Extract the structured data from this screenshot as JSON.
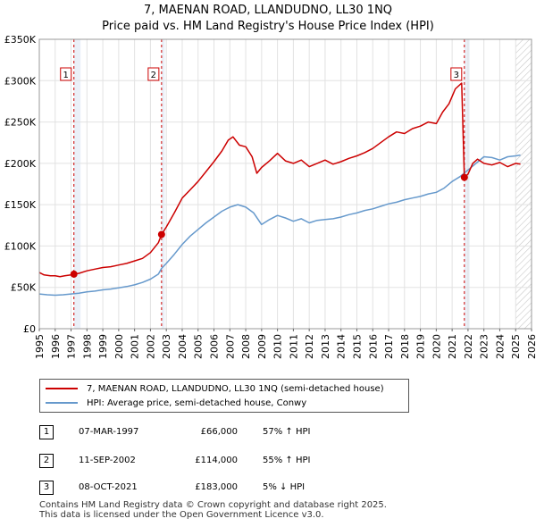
{
  "chart_data": {
    "type": "line",
    "title": "7, MAENAN ROAD, LLANDUDNO, LL30 1NQ",
    "subtitle": "Price paid vs. HM Land Registry's House Price Index (HPI)",
    "xlim": [
      1995,
      2026
    ],
    "ylim": [
      0,
      350000
    ],
    "x_ticks": [
      1995,
      1996,
      1997,
      1998,
      1999,
      2000,
      2001,
      2002,
      2003,
      2004,
      2005,
      2006,
      2007,
      2008,
      2009,
      2010,
      2011,
      2012,
      2013,
      2014,
      2015,
      2016,
      2017,
      2018,
      2019,
      2020,
      2021,
      2022,
      2023,
      2024,
      2025,
      2026
    ],
    "y_ticks": [
      {
        "value": 0,
        "label": "£0"
      },
      {
        "value": 50000,
        "label": "£50K"
      },
      {
        "value": 100000,
        "label": "£100K"
      },
      {
        "value": 150000,
        "label": "£150K"
      },
      {
        "value": 200000,
        "label": "£200K"
      },
      {
        "value": 250000,
        "label": "£250K"
      },
      {
        "value": 300000,
        "label": "£300K"
      },
      {
        "value": 350000,
        "label": "£350K"
      }
    ],
    "grid": true,
    "shaded_regions": [
      {
        "from": 1997.18,
        "to": 1997.6
      },
      {
        "from": 2002.7,
        "to": 2002.9
      },
      {
        "from": 2021.77,
        "to": 2022.1
      },
      {
        "from": 2025.0,
        "to": 2026.0,
        "hatched": true
      }
    ],
    "series": [
      {
        "name": "7, MAENAN ROAD, LLANDUDNO, LL30 1NQ (semi-detached house)",
        "color": "#cc0000",
        "points": [
          [
            1995.0,
            68000
          ],
          [
            1995.3,
            65000
          ],
          [
            1995.7,
            64000
          ],
          [
            1996.0,
            64000
          ],
          [
            1996.3,
            63000
          ],
          [
            1996.6,
            64000
          ],
          [
            1997.0,
            65000
          ],
          [
            1997.18,
            66000
          ],
          [
            1997.5,
            67000
          ],
          [
            1998.0,
            70000
          ],
          [
            1998.5,
            72000
          ],
          [
            1999.0,
            74000
          ],
          [
            1999.5,
            75000
          ],
          [
            2000.0,
            77000
          ],
          [
            2000.5,
            79000
          ],
          [
            2001.0,
            82000
          ],
          [
            2001.5,
            85000
          ],
          [
            2002.0,
            92000
          ],
          [
            2002.5,
            104000
          ],
          [
            2002.7,
            114000
          ],
          [
            2003.0,
            123000
          ],
          [
            2003.5,
            140000
          ],
          [
            2004.0,
            158000
          ],
          [
            2004.5,
            168000
          ],
          [
            2005.0,
            178000
          ],
          [
            2005.5,
            190000
          ],
          [
            2006.0,
            202000
          ],
          [
            2006.5,
            215000
          ],
          [
            2006.9,
            228000
          ],
          [
            2007.2,
            232000
          ],
          [
            2007.6,
            222000
          ],
          [
            2008.0,
            220000
          ],
          [
            2008.4,
            208000
          ],
          [
            2008.7,
            188000
          ],
          [
            2009.0,
            195000
          ],
          [
            2009.5,
            203000
          ],
          [
            2010.0,
            212000
          ],
          [
            2010.5,
            203000
          ],
          [
            2011.0,
            200000
          ],
          [
            2011.5,
            204000
          ],
          [
            2012.0,
            196000
          ],
          [
            2012.5,
            200000
          ],
          [
            2013.0,
            204000
          ],
          [
            2013.5,
            199000
          ],
          [
            2014.0,
            202000
          ],
          [
            2014.5,
            206000
          ],
          [
            2015.0,
            209000
          ],
          [
            2015.5,
            213000
          ],
          [
            2016.0,
            218000
          ],
          [
            2016.5,
            225000
          ],
          [
            2017.0,
            232000
          ],
          [
            2017.5,
            238000
          ],
          [
            2018.0,
            236000
          ],
          [
            2018.5,
            242000
          ],
          [
            2019.0,
            245000
          ],
          [
            2019.5,
            250000
          ],
          [
            2020.0,
            248000
          ],
          [
            2020.4,
            262000
          ],
          [
            2020.8,
            272000
          ],
          [
            2021.2,
            290000
          ],
          [
            2021.6,
            297000
          ],
          [
            2021.77,
            183000
          ],
          [
            2022.0,
            187000
          ],
          [
            2022.3,
            200000
          ],
          [
            2022.6,
            205000
          ],
          [
            2023.0,
            200000
          ],
          [
            2023.5,
            198000
          ],
          [
            2024.0,
            201000
          ],
          [
            2024.5,
            196000
          ],
          [
            2025.0,
            200000
          ],
          [
            2025.3,
            199000
          ]
        ]
      },
      {
        "name": "HPI: Average price, semi-detached house, Conwy",
        "color": "#6699cc",
        "points": [
          [
            1995.0,
            42000
          ],
          [
            1995.5,
            41000
          ],
          [
            1996.0,
            40500
          ],
          [
            1996.5,
            41000
          ],
          [
            1997.0,
            42000
          ],
          [
            1997.5,
            43000
          ],
          [
            1998.0,
            44500
          ],
          [
            1998.5,
            45500
          ],
          [
            1999.0,
            47000
          ],
          [
            1999.5,
            48000
          ],
          [
            2000.0,
            49500
          ],
          [
            2000.5,
            51000
          ],
          [
            2001.0,
            53000
          ],
          [
            2001.5,
            56000
          ],
          [
            2002.0,
            60000
          ],
          [
            2002.5,
            66000
          ],
          [
            2002.7,
            73000
          ],
          [
            2003.0,
            79000
          ],
          [
            2003.5,
            90000
          ],
          [
            2004.0,
            102000
          ],
          [
            2004.5,
            112000
          ],
          [
            2005.0,
            120000
          ],
          [
            2005.5,
            128000
          ],
          [
            2006.0,
            135000
          ],
          [
            2006.5,
            142000
          ],
          [
            2007.0,
            147000
          ],
          [
            2007.5,
            150000
          ],
          [
            2008.0,
            147000
          ],
          [
            2008.5,
            140000
          ],
          [
            2009.0,
            126000
          ],
          [
            2009.5,
            132000
          ],
          [
            2010.0,
            137000
          ],
          [
            2010.5,
            134000
          ],
          [
            2011.0,
            130000
          ],
          [
            2011.5,
            133000
          ],
          [
            2012.0,
            128000
          ],
          [
            2012.5,
            131000
          ],
          [
            2013.0,
            132000
          ],
          [
            2013.5,
            133000
          ],
          [
            2014.0,
            135000
          ],
          [
            2014.5,
            138000
          ],
          [
            2015.0,
            140000
          ],
          [
            2015.5,
            143000
          ],
          [
            2016.0,
            145000
          ],
          [
            2016.5,
            148000
          ],
          [
            2017.0,
            151000
          ],
          [
            2017.5,
            153000
          ],
          [
            2018.0,
            156000
          ],
          [
            2018.5,
            158000
          ],
          [
            2019.0,
            160000
          ],
          [
            2019.5,
            163000
          ],
          [
            2020.0,
            165000
          ],
          [
            2020.5,
            170000
          ],
          [
            2021.0,
            178000
          ],
          [
            2021.5,
            184000
          ],
          [
            2022.0,
            192000
          ],
          [
            2022.5,
            200000
          ],
          [
            2023.0,
            208000
          ],
          [
            2023.5,
            207000
          ],
          [
            2024.0,
            204000
          ],
          [
            2024.5,
            208000
          ],
          [
            2025.0,
            209000
          ],
          [
            2025.3,
            210000
          ]
        ]
      }
    ],
    "transactions": [
      {
        "id": "1",
        "x": 1997.18,
        "y": 66000
      },
      {
        "id": "2",
        "x": 2002.7,
        "y": 114000
      },
      {
        "id": "3",
        "x": 2021.77,
        "y": 183000
      }
    ],
    "annotations": [
      {
        "label": "1",
        "x": 1997.18
      },
      {
        "label": "2",
        "x": 2002.7
      },
      {
        "label": "3",
        "x": 2021.77
      }
    ]
  },
  "legend": {
    "property_label": "7, MAENAN ROAD, LLANDUDNO, LL30 1NQ (semi-detached house)",
    "hpi_label": "HPI: Average price, semi-detached house, Conwy",
    "property_color": "#cc0000",
    "hpi_color": "#6699cc"
  },
  "transactions_table": [
    {
      "id": "1",
      "date": "07-MAR-1997",
      "price": "£66,000",
      "hpi": "57% ↑ HPI"
    },
    {
      "id": "2",
      "date": "11-SEP-2002",
      "price": "£114,000",
      "hpi": "55% ↑ HPI"
    },
    {
      "id": "3",
      "date": "08-OCT-2021",
      "price": "£183,000",
      "hpi": "5% ↓ HPI"
    }
  ],
  "footer": {
    "line1": "Contains HM Land Registry data © Crown copyright and database right 2025.",
    "line2": "This data is licensed under the Open Government Licence v3.0."
  }
}
